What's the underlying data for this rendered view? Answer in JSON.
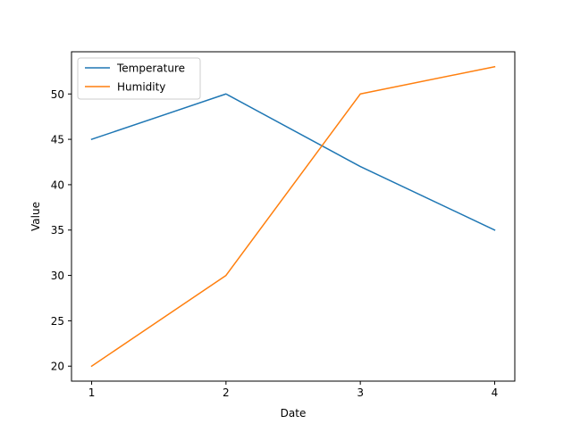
{
  "chart_data": {
    "type": "line",
    "title": "",
    "xlabel": "Date",
    "ylabel": "Value",
    "x": [
      1,
      2,
      3,
      4
    ],
    "xticks": [
      "1",
      "2",
      "3",
      "4"
    ],
    "yticks": [
      "20",
      "25",
      "30",
      "35",
      "40",
      "45",
      "50"
    ],
    "xlim": [
      0.85,
      4.15
    ],
    "ylim": [
      18.35,
      54.65
    ],
    "grid": false,
    "legend_position": "upper-left",
    "series": [
      {
        "name": "Temperature",
        "values": [
          45,
          50,
          42,
          35
        ],
        "color": "#1f77b4"
      },
      {
        "name": "Humidity",
        "values": [
          20,
          30,
          50,
          53
        ],
        "color": "#ff7f0e"
      }
    ]
  }
}
